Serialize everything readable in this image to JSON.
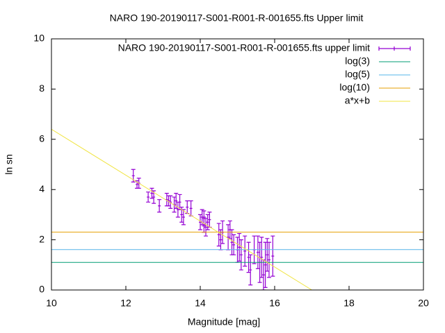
{
  "chart_data": {
    "type": "errorbar",
    "title": "NARO 190-20190117-S001-R001-R-001655.fts Upper limit",
    "x_label": "Magnitude [mag]",
    "y_label": "ln sn",
    "xlim": [
      10,
      20
    ],
    "ylim": [
      0,
      10
    ],
    "xticks": [
      10,
      12,
      14,
      16,
      18,
      20
    ],
    "yticks": [
      0,
      2,
      4,
      6,
      8,
      10
    ],
    "legend": "top-right",
    "series": [
      {
        "name": "NARO 190-20190117-S001-R001-R-001655.fts upper limit",
        "color": "#9400d3",
        "style": "errorbars",
        "x": [
          12.2,
          12.3,
          12.35,
          12.6,
          12.7,
          12.75,
          12.9,
          13.1,
          13.15,
          13.2,
          13.3,
          13.35,
          13.4,
          13.45,
          13.5,
          13.55,
          13.65,
          13.75,
          14.0,
          14.05,
          14.1,
          14.1,
          14.15,
          14.2,
          14.25,
          14.5,
          14.55,
          14.6,
          14.75,
          14.8,
          14.85,
          14.9,
          15.0,
          15.05,
          15.1,
          15.2,
          15.3,
          15.35,
          15.45,
          15.55,
          15.6,
          15.65,
          15.7,
          15.75,
          15.8,
          15.85,
          15.95
        ],
        "values": [
          4.55,
          4.2,
          4.25,
          3.7,
          3.85,
          3.7,
          3.35,
          3.6,
          3.55,
          3.5,
          3.4,
          3.55,
          3.2,
          3.5,
          3.0,
          2.9,
          3.3,
          3.25,
          2.7,
          2.9,
          2.6,
          2.85,
          2.5,
          2.7,
          2.8,
          2.2,
          2.0,
          2.3,
          2.1,
          2.4,
          1.9,
          1.8,
          1.6,
          1.7,
          1.4,
          1.55,
          1.3,
          0.8,
          1.6,
          1.5,
          1.1,
          1.3,
          0.6,
          1.0,
          1.4,
          1.2,
          1.35
        ],
        "errors": [
          0.25,
          0.15,
          0.2,
          0.2,
          0.2,
          0.25,
          0.25,
          0.25,
          0.2,
          0.25,
          0.3,
          0.3,
          0.3,
          0.3,
          0.3,
          0.3,
          0.25,
          0.3,
          0.3,
          0.3,
          0.3,
          0.3,
          0.35,
          0.3,
          0.3,
          0.45,
          0.4,
          0.45,
          0.5,
          0.35,
          0.5,
          0.4,
          0.5,
          0.55,
          0.6,
          0.6,
          0.6,
          0.6,
          0.55,
          0.65,
          0.8,
          0.8,
          0.6,
          0.9,
          0.65,
          0.7,
          0.8
        ]
      },
      {
        "name": "log(3)",
        "color": "#009e73",
        "style": "line",
        "x": [
          10,
          20
        ],
        "values": [
          1.0986,
          1.0986
        ]
      },
      {
        "name": "log(5)",
        "color": "#56b4e9",
        "style": "line",
        "x": [
          10,
          20
        ],
        "values": [
          1.6094,
          1.6094
        ]
      },
      {
        "name": "log(10)",
        "color": "#e69f00",
        "style": "line",
        "x": [
          10,
          20
        ],
        "values": [
          2.3026,
          2.3026
        ]
      },
      {
        "name": "a*x+b",
        "color": "#f0e442",
        "style": "line",
        "x": [
          10,
          17
        ],
        "values": [
          6.4,
          0
        ]
      }
    ]
  }
}
